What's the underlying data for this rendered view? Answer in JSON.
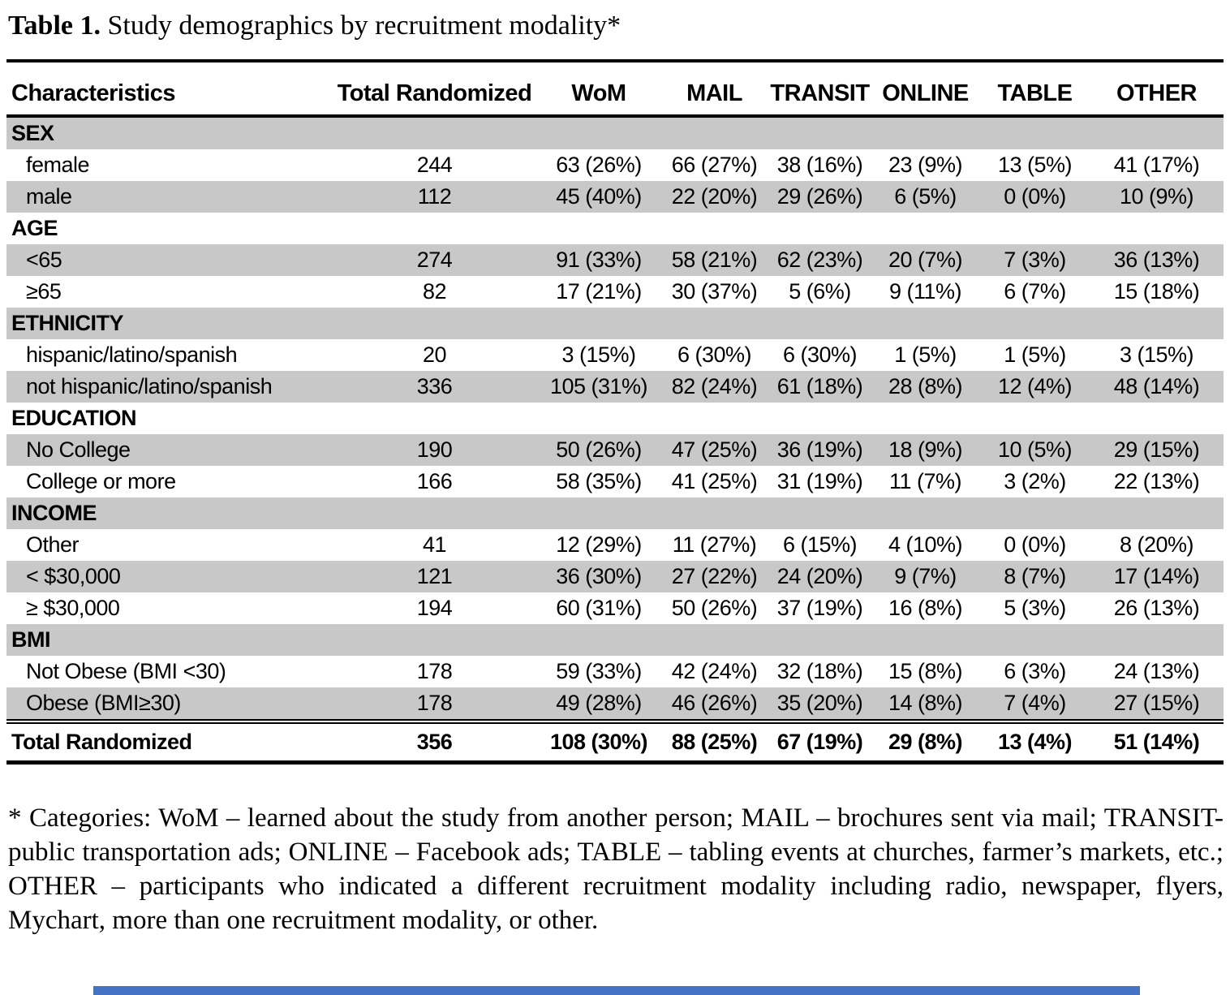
{
  "title": {
    "label": "Table 1.",
    "rest": " Study demographics by recruitment modality*"
  },
  "table": {
    "columns": [
      "Characteristics",
      "Total Randomized",
      "WoM",
      "MAIL",
      "TRANSIT",
      "ONLINE",
      "TABLE",
      "OTHER"
    ],
    "rows": [
      {
        "type": "section",
        "label": "SEX"
      },
      {
        "type": "data",
        "label": "female",
        "values": [
          "244",
          "63 (26%)",
          "66 (27%)",
          "38 (16%)",
          "23 (9%)",
          "13 (5%)",
          "41 (17%)"
        ]
      },
      {
        "type": "data",
        "label": "male",
        "values": [
          "112",
          "45 (40%)",
          "22 (20%)",
          "29 (26%)",
          "6 (5%)",
          "0 (0%)",
          "10 (9%)"
        ]
      },
      {
        "type": "section",
        "label": "AGE"
      },
      {
        "type": "data",
        "label": "<65",
        "values": [
          "274",
          "91 (33%)",
          "58 (21%)",
          "62 (23%)",
          "20 (7%)",
          "7 (3%)",
          "36 (13%)"
        ]
      },
      {
        "type": "data",
        "label": "≥65",
        "values": [
          "82",
          "17 (21%)",
          "30 (37%)",
          "5 (6%)",
          "9 (11%)",
          "6 (7%)",
          "15 (18%)"
        ]
      },
      {
        "type": "section",
        "label": "ETHNICITY"
      },
      {
        "type": "data",
        "label": "hispanic/latino/spanish",
        "values": [
          "20",
          "3 (15%)",
          "6 (30%)",
          "6 (30%)",
          "1 (5%)",
          "1 (5%)",
          "3 (15%)"
        ]
      },
      {
        "type": "data",
        "label": "not hispanic/latino/spanish",
        "values": [
          "336",
          "105 (31%)",
          "82 (24%)",
          "61 (18%)",
          "28 (8%)",
          "12 (4%)",
          "48 (14%)"
        ]
      },
      {
        "type": "section",
        "label": "EDUCATION"
      },
      {
        "type": "data",
        "label": "No College",
        "values": [
          "190",
          "50 (26%)",
          "47 (25%)",
          "36 (19%)",
          "18 (9%)",
          "10 (5%)",
          "29 (15%)"
        ]
      },
      {
        "type": "data",
        "label": "College or more",
        "values": [
          "166",
          "58 (35%)",
          "41 (25%)",
          "31 (19%)",
          "11 (7%)",
          "3 (2%)",
          "22 (13%)"
        ]
      },
      {
        "type": "section",
        "label": "INCOME"
      },
      {
        "type": "data",
        "label": "Other",
        "values": [
          "41",
          "12 (29%)",
          "11 (27%)",
          "6 (15%)",
          "4 (10%)",
          "0 (0%)",
          "8 (20%)"
        ]
      },
      {
        "type": "data",
        "label": "< $30,000",
        "values": [
          "121",
          "36 (30%)",
          "27 (22%)",
          "24 (20%)",
          "9 (7%)",
          "8 (7%)",
          "17 (14%)"
        ]
      },
      {
        "type": "data",
        "label": "≥ $30,000",
        "values": [
          "194",
          "60 (31%)",
          "50 (26%)",
          "37 (19%)",
          "16 (8%)",
          "5 (3%)",
          "26 (13%)"
        ]
      },
      {
        "type": "section",
        "label": "BMI"
      },
      {
        "type": "data",
        "label": "Not Obese (BMI <30)",
        "values": [
          "178",
          "59 (33%)",
          "42 (24%)",
          "32 (18%)",
          "15 (8%)",
          "6 (3%)",
          "24 (13%)"
        ]
      },
      {
        "type": "data",
        "label": "Obese (BMI≥30)",
        "values": [
          "178",
          "49 (28%)",
          "46 (26%)",
          "35 (20%)",
          "14 (8%)",
          "7 (4%)",
          "27 (15%)"
        ]
      },
      {
        "type": "total",
        "label": "Total Randomized",
        "values": [
          "356",
          "108 (30%)",
          "88 (25%)",
          "67 (19%)",
          "29 (8%)",
          "13 (4%)",
          "51 (14%)"
        ]
      }
    ]
  },
  "footnote": "* Categories: WoM – learned about the study from another person; MAIL – brochures sent via mail; TRANSIT- public transportation ads; ONLINE – Facebook ads; TABLE – tabling events at churches, farmer’s markets, etc.; OTHER – participants who indicated a different recruitment modality including radio, newspaper, flyers, Mychart, more than one recruitment modality, or other.",
  "colors": {
    "row_shade": "#c8c8c8",
    "rule": "#000000",
    "bottom_bar": "#4472c4"
  }
}
